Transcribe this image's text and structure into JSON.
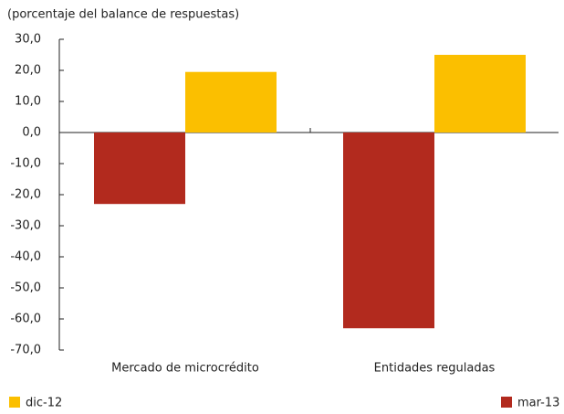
{
  "chart_data": {
    "type": "bar",
    "y_label": "(porcentaje del balance de respuestas)",
    "categories": [
      "Mercado de microcrédito",
      "Entidades reguladas"
    ],
    "series": [
      {
        "name": "mar-13",
        "color": "#b22a1e",
        "values": [
          -23,
          -63
        ]
      },
      {
        "name": "dic-12",
        "color": "#fbbf00",
        "values": [
          19.5,
          25
        ]
      }
    ],
    "ylim": [
      -70,
      30
    ],
    "yticks": [
      {
        "value": 30,
        "label": "30,0"
      },
      {
        "value": 20,
        "label": "20,0"
      },
      {
        "value": 10,
        "label": "10,0"
      },
      {
        "value": 0,
        "label": "0,0"
      },
      {
        "value": -10,
        "label": "-10,0"
      },
      {
        "value": -20,
        "label": "-20,0"
      },
      {
        "value": -30,
        "label": "-30,0"
      },
      {
        "value": -40,
        "label": "-40,0"
      },
      {
        "value": -50,
        "label": "-50,0"
      },
      {
        "value": -60,
        "label": "-60,0"
      },
      {
        "value": -70,
        "label": "-70,0"
      }
    ]
  }
}
